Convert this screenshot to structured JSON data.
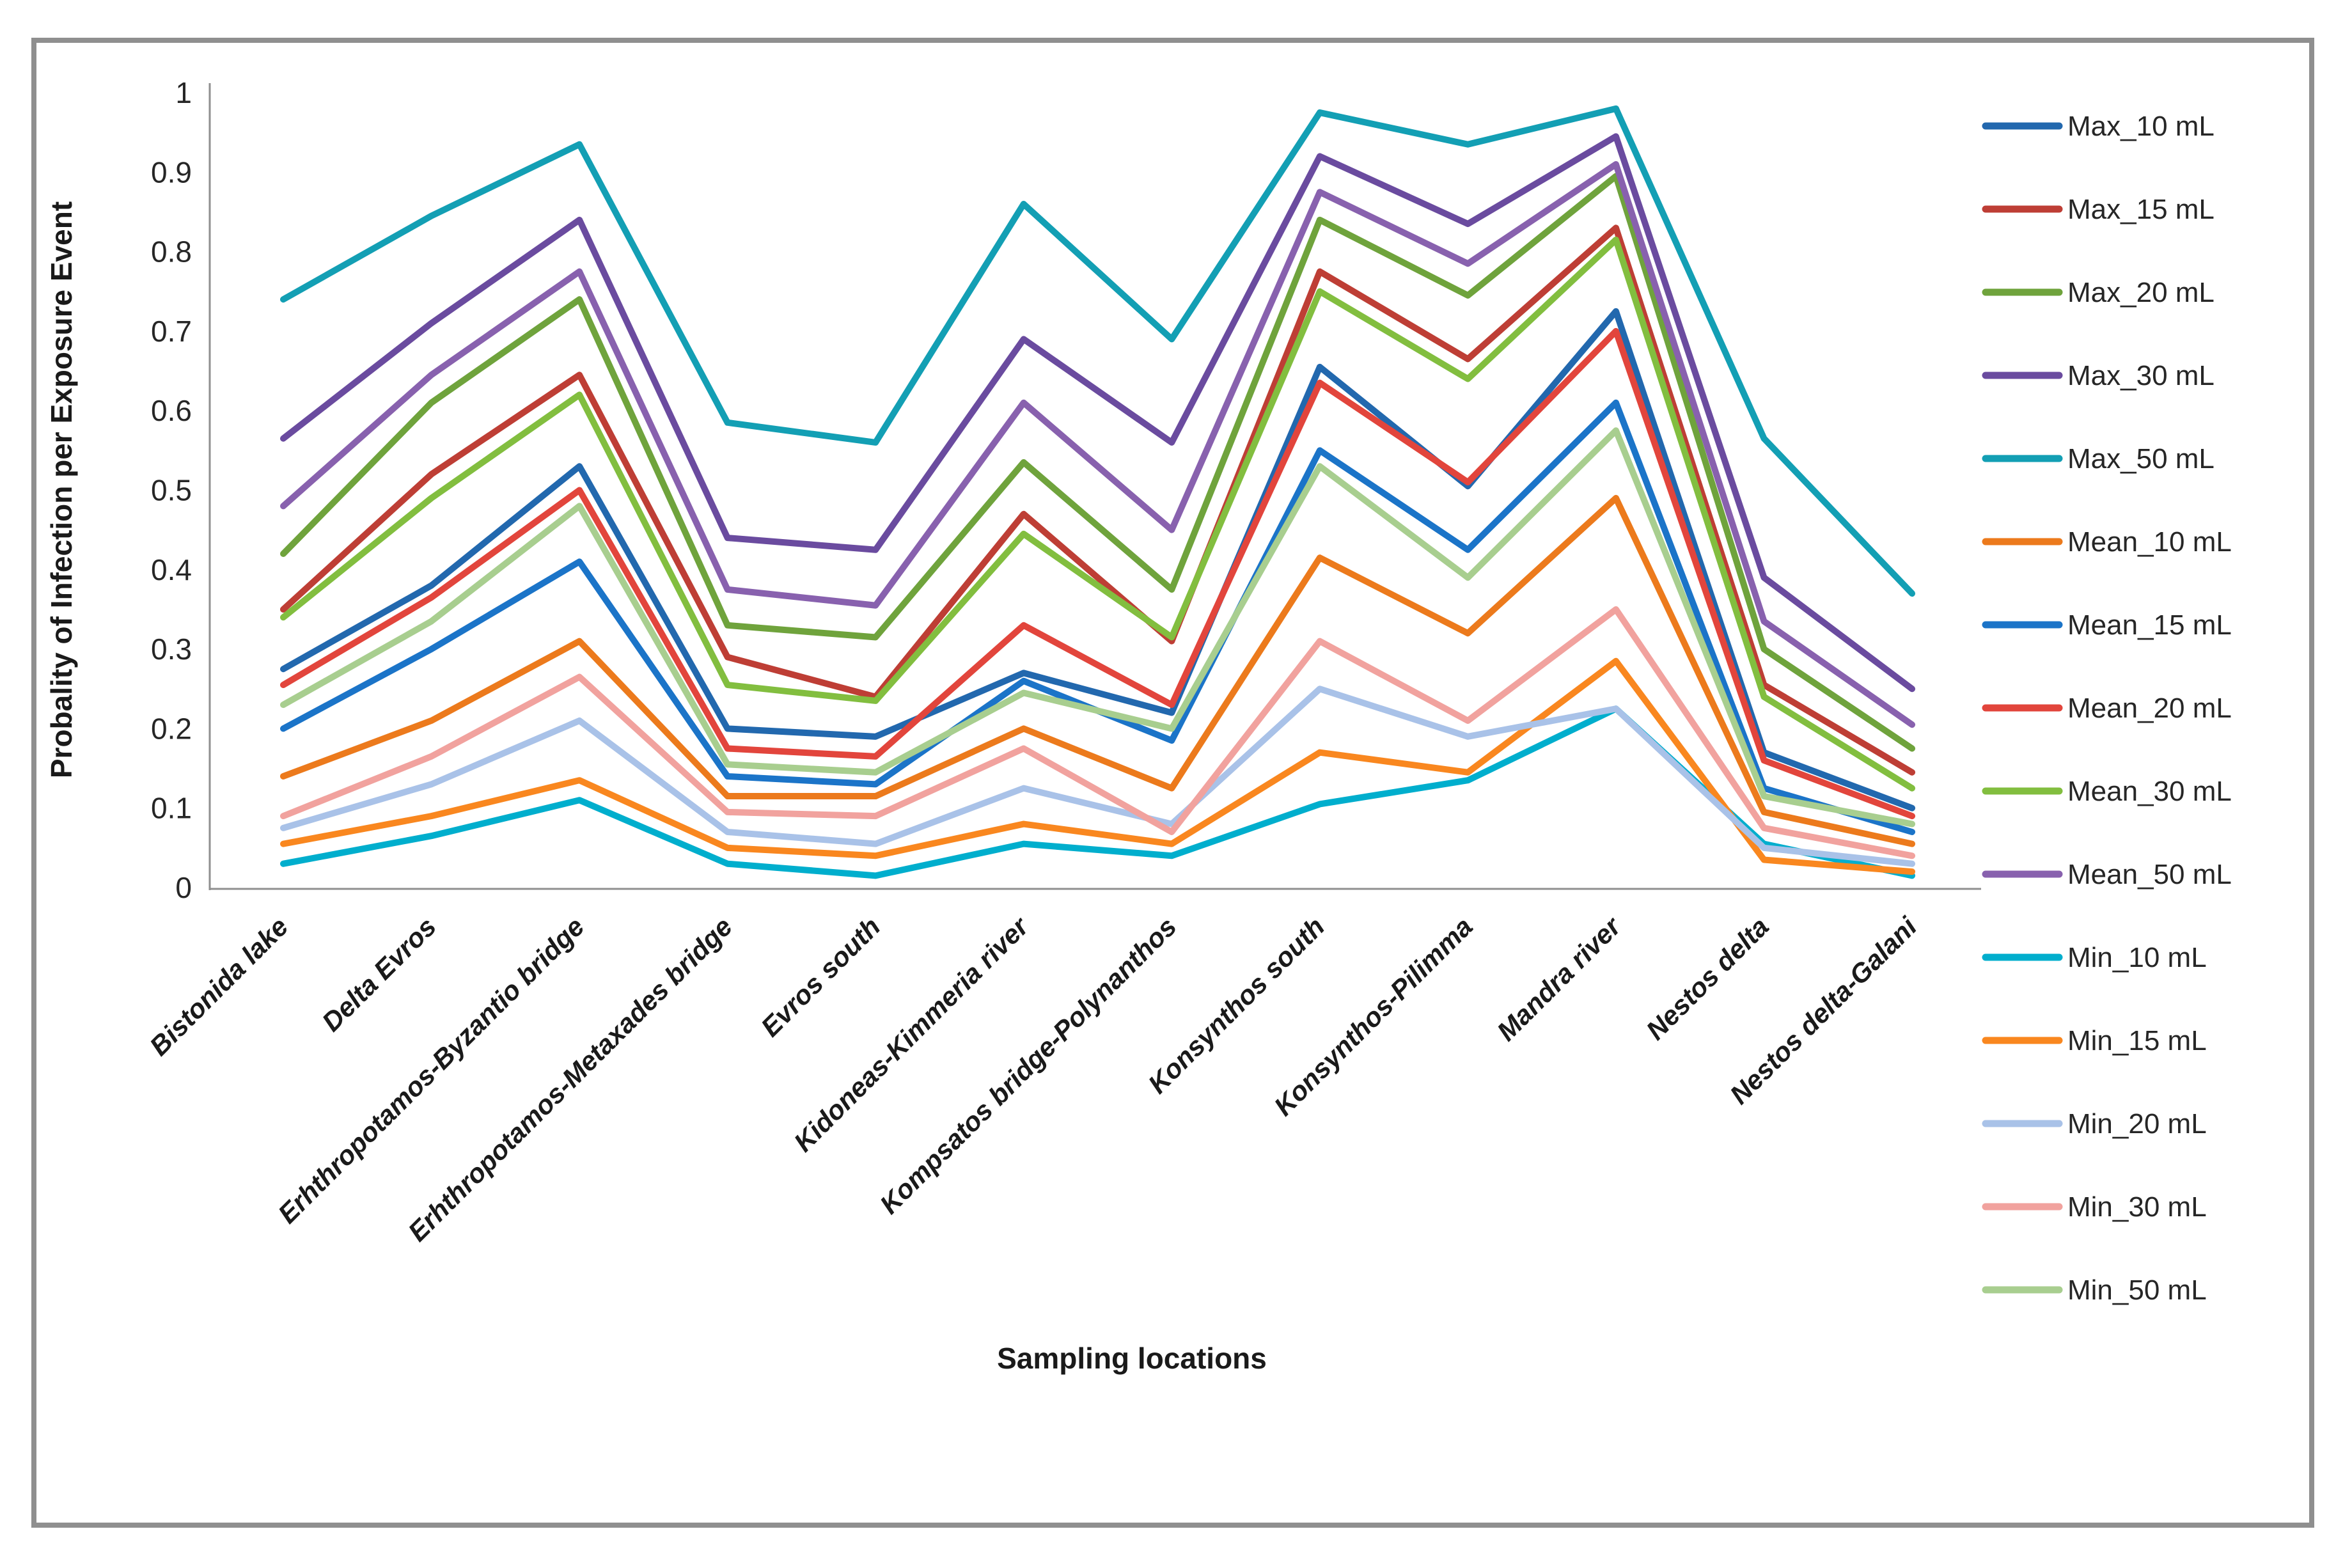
{
  "chart_data": {
    "type": "line",
    "title": "",
    "xlabel": "Sampling locations",
    "ylabel": "Probality of Infection per Exposure Event",
    "ylim": [
      0,
      1
    ],
    "ytick_step": 0.1,
    "ytick_labels": [
      "0",
      "0.1",
      "0.2",
      "0.3",
      "0.4",
      "0.5",
      "0.6",
      "0.7",
      "0.8",
      "0.9",
      "1"
    ],
    "grid": false,
    "legend_position": "right",
    "axis_color": "#8f8f8f",
    "border_color": "#8f8f8f",
    "background_color": "#ffffff",
    "categories": [
      "Bistonida lake",
      "Delta Evros",
      "Erhthropotamos-Byzantio bridge",
      "Erhthropotamos-Metaxades bridge",
      "Evros south",
      "Kidoneas-Kimmeria river",
      "Kompsatos bridge-Polynanthos",
      "Konsynthos south",
      "Konsynthos-Pilimma",
      "Mandra river",
      "Nestos delta",
      "Nestos delta-Galani"
    ],
    "series": [
      {
        "name": "Max_10 mL",
        "color": "#2268AE",
        "values": [
          0.275,
          0.38,
          0.53,
          0.2,
          0.19,
          0.27,
          0.22,
          0.655,
          0.505,
          0.725,
          0.17,
          0.1
        ]
      },
      {
        "name": "Max_15 mL",
        "color": "#BE3E35",
        "values": [
          0.35,
          0.52,
          0.645,
          0.29,
          0.24,
          0.47,
          0.31,
          0.775,
          0.665,
          0.83,
          0.255,
          0.145
        ]
      },
      {
        "name": "Max_20 mL",
        "color": "#6FA33C",
        "values": [
          0.42,
          0.61,
          0.74,
          0.33,
          0.315,
          0.535,
          0.375,
          0.84,
          0.745,
          0.895,
          0.3,
          0.175
        ]
      },
      {
        "name": "Max_30 mL",
        "color": "#6A4B9F",
        "values": [
          0.565,
          0.71,
          0.84,
          0.44,
          0.425,
          0.69,
          0.56,
          0.92,
          0.835,
          0.945,
          0.39,
          0.25
        ]
      },
      {
        "name": "Max_50 mL",
        "color": "#139FB4",
        "values": [
          0.74,
          0.845,
          0.935,
          0.585,
          0.56,
          0.86,
          0.69,
          0.975,
          0.935,
          0.98,
          0.565,
          0.37
        ]
      },
      {
        "name": "Mean_10 mL",
        "color": "#EC7A1C",
        "values": [
          0.14,
          0.21,
          0.31,
          0.115,
          0.115,
          0.2,
          0.125,
          0.415,
          0.32,
          0.49,
          0.095,
          0.055
        ]
      },
      {
        "name": "Mean_15 mL",
        "color": "#1B74C8",
        "values": [
          0.2,
          0.3,
          0.41,
          0.14,
          0.13,
          0.26,
          0.185,
          0.55,
          0.425,
          0.61,
          0.125,
          0.07
        ]
      },
      {
        "name": "Mean_20 mL",
        "color": "#E2453C",
        "values": [
          0.255,
          0.365,
          0.5,
          0.175,
          0.165,
          0.33,
          0.23,
          0.635,
          0.51,
          0.7,
          0.16,
          0.09
        ]
      },
      {
        "name": "Mean_30 mL",
        "color": "#82BE3F",
        "values": [
          0.34,
          0.49,
          0.62,
          0.255,
          0.235,
          0.445,
          0.315,
          0.75,
          0.64,
          0.815,
          0.24,
          0.125
        ]
      },
      {
        "name": "Mean_50 mL",
        "color": "#8861AE",
        "values": [
          0.48,
          0.645,
          0.775,
          0.375,
          0.355,
          0.61,
          0.45,
          0.875,
          0.785,
          0.91,
          0.335,
          0.205
        ]
      },
      {
        "name": "Min_10 mL",
        "color": "#00AECD",
        "values": [
          0.03,
          0.065,
          0.11,
          0.03,
          0.015,
          0.055,
          0.04,
          0.105,
          0.135,
          0.225,
          0.055,
          0.015
        ]
      },
      {
        "name": "Min_15 mL",
        "color": "#F9871F",
        "values": [
          0.055,
          0.09,
          0.135,
          0.05,
          0.04,
          0.08,
          0.055,
          0.17,
          0.145,
          0.285,
          0.035,
          0.02
        ]
      },
      {
        "name": "Min_20 mL",
        "color": "#A9C2E8",
        "values": [
          0.075,
          0.13,
          0.21,
          0.07,
          0.055,
          0.125,
          0.08,
          0.25,
          0.19,
          0.225,
          0.05,
          0.03
        ]
      },
      {
        "name": "Min_30 mL",
        "color": "#F1A29E",
        "values": [
          0.09,
          0.165,
          0.265,
          0.095,
          0.09,
          0.175,
          0.07,
          0.31,
          0.21,
          0.35,
          0.075,
          0.04
        ]
      },
      {
        "name": "Min_50 mL",
        "color": "#A8CE8F",
        "values": [
          0.23,
          0.335,
          0.48,
          0.155,
          0.145,
          0.245,
          0.2,
          0.53,
          0.39,
          0.575,
          0.115,
          0.08
        ]
      }
    ]
  }
}
